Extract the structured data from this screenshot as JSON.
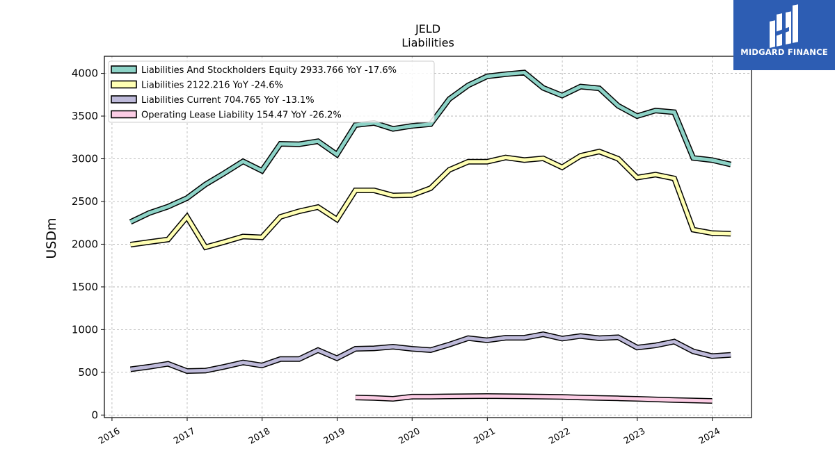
{
  "branding": {
    "logo_text": "MIDGARD FINANCE",
    "logo_icon": "midgard-logo-mark",
    "logo_bg": "#2d5db3"
  },
  "chart_data": {
    "type": "line",
    "title": "JELD",
    "subtitle": "Liabilities",
    "xlabel": "",
    "ylabel": "USDm",
    "xlim": [
      "2015-11-25",
      "2024-07-10"
    ],
    "ylim": [
      -30,
      4200
    ],
    "yticks": [
      0,
      500,
      1000,
      1500,
      2000,
      2500,
      3000,
      3500,
      4000
    ],
    "xticks": [
      "2016",
      "2017",
      "2018",
      "2019",
      "2020",
      "2021",
      "2022",
      "2023",
      "2024"
    ],
    "grid": true,
    "legend_position": "top-left",
    "series": [
      {
        "name": "Liabilities And Stockholders Equity",
        "legend_label": "Liabilities And Stockholders Equity  2933.766 YoY -17.6%",
        "color": "#8dd3c7",
        "points": [
          [
            "2016-03-31",
            2260
          ],
          [
            "2016-06-30",
            2365
          ],
          [
            "2016-09-30",
            2440
          ],
          [
            "2016-12-31",
            2540
          ],
          [
            "2017-03-31",
            2700
          ],
          [
            "2017-06-30",
            2830
          ],
          [
            "2017-09-30",
            2970
          ],
          [
            "2017-12-31",
            2860
          ],
          [
            "2018-03-31",
            3175
          ],
          [
            "2018-06-30",
            3170
          ],
          [
            "2018-09-30",
            3205
          ],
          [
            "2018-12-31",
            3050
          ],
          [
            "2019-03-31",
            3395
          ],
          [
            "2019-06-30",
            3420
          ],
          [
            "2019-09-30",
            3350
          ],
          [
            "2019-12-31",
            3385
          ],
          [
            "2020-03-31",
            3405
          ],
          [
            "2020-06-30",
            3700
          ],
          [
            "2020-09-30",
            3860
          ],
          [
            "2020-12-31",
            3965
          ],
          [
            "2021-03-31",
            3990
          ],
          [
            "2021-06-30",
            4010
          ],
          [
            "2021-09-30",
            3830
          ],
          [
            "2021-12-31",
            3740
          ],
          [
            "2022-03-31",
            3845
          ],
          [
            "2022-06-30",
            3825
          ],
          [
            "2022-09-30",
            3620
          ],
          [
            "2022-12-31",
            3500
          ],
          [
            "2023-03-31",
            3565
          ],
          [
            "2023-06-30",
            3545
          ],
          [
            "2023-09-30",
            3010
          ],
          [
            "2023-12-31",
            2985
          ],
          [
            "2024-03-31",
            2933.766
          ]
        ]
      },
      {
        "name": "Liabilities",
        "legend_label": "Liabilities  2122.216 YoY -24.6%",
        "color": "#ffffb3",
        "points": [
          [
            "2016-03-31",
            1995
          ],
          [
            "2016-06-30",
            2025
          ],
          [
            "2016-09-30",
            2055
          ],
          [
            "2016-12-31",
            2320
          ],
          [
            "2017-03-31",
            1965
          ],
          [
            "2017-06-30",
            2025
          ],
          [
            "2017-09-30",
            2090
          ],
          [
            "2017-12-31",
            2080
          ],
          [
            "2018-03-31",
            2320
          ],
          [
            "2018-06-30",
            2385
          ],
          [
            "2018-09-30",
            2435
          ],
          [
            "2018-12-31",
            2290
          ],
          [
            "2019-03-31",
            2630
          ],
          [
            "2019-06-30",
            2630
          ],
          [
            "2019-09-30",
            2570
          ],
          [
            "2019-12-31",
            2575
          ],
          [
            "2020-03-31",
            2655
          ],
          [
            "2020-06-30",
            2870
          ],
          [
            "2020-09-30",
            2965
          ],
          [
            "2020-12-31",
            2965
          ],
          [
            "2021-03-31",
            3015
          ],
          [
            "2021-06-30",
            2985
          ],
          [
            "2021-09-30",
            3005
          ],
          [
            "2021-12-31",
            2900
          ],
          [
            "2022-03-31",
            3035
          ],
          [
            "2022-06-30",
            3085
          ],
          [
            "2022-09-30",
            3000
          ],
          [
            "2022-12-31",
            2780
          ],
          [
            "2023-03-31",
            2815
          ],
          [
            "2023-06-30",
            2770
          ],
          [
            "2023-09-30",
            2170
          ],
          [
            "2023-12-31",
            2130
          ],
          [
            "2024-03-31",
            2122.216
          ]
        ]
      },
      {
        "name": "Liabilities Current",
        "legend_label": "Liabilities Current  704.765 YoY -13.1%",
        "color": "#bebada",
        "points": [
          [
            "2016-03-31",
            535
          ],
          [
            "2016-06-30",
            565
          ],
          [
            "2016-09-30",
            600
          ],
          [
            "2016-12-31",
            515
          ],
          [
            "2017-03-31",
            520
          ],
          [
            "2017-06-30",
            565
          ],
          [
            "2017-09-30",
            615
          ],
          [
            "2017-12-31",
            580
          ],
          [
            "2018-03-31",
            655
          ],
          [
            "2018-06-30",
            655
          ],
          [
            "2018-09-30",
            760
          ],
          [
            "2018-12-31",
            665
          ],
          [
            "2019-03-31",
            775
          ],
          [
            "2019-06-30",
            780
          ],
          [
            "2019-09-30",
            800
          ],
          [
            "2019-12-31",
            775
          ],
          [
            "2020-03-31",
            760
          ],
          [
            "2020-06-30",
            825
          ],
          [
            "2020-09-30",
            900
          ],
          [
            "2020-12-31",
            875
          ],
          [
            "2021-03-31",
            905
          ],
          [
            "2021-06-30",
            905
          ],
          [
            "2021-09-30",
            945
          ],
          [
            "2021-12-31",
            895
          ],
          [
            "2022-03-31",
            925
          ],
          [
            "2022-06-30",
            900
          ],
          [
            "2022-09-30",
            910
          ],
          [
            "2022-12-31",
            790
          ],
          [
            "2023-03-31",
            815
          ],
          [
            "2023-06-30",
            860
          ],
          [
            "2023-09-30",
            745
          ],
          [
            "2023-12-31",
            690
          ],
          [
            "2024-03-31",
            704.765
          ]
        ]
      },
      {
        "name": "Operating Lease Liability",
        "legend_label": "Operating Lease Liability  154.47 YoY -26.2%",
        "color": "#fccde5",
        "points": [
          [
            "2019-03-31",
            205
          ],
          [
            "2019-06-30",
            200
          ],
          [
            "2019-09-30",
            190
          ],
          [
            "2019-12-31",
            215
          ],
          [
            "2020-03-31",
            215
          ],
          [
            "2020-06-30",
            218
          ],
          [
            "2020-09-30",
            220
          ],
          [
            "2020-12-31",
            222
          ],
          [
            "2021-03-31",
            220
          ],
          [
            "2021-06-30",
            218
          ],
          [
            "2021-09-30",
            215
          ],
          [
            "2021-12-31",
            212
          ],
          [
            "2022-03-31",
            205
          ],
          [
            "2022-06-30",
            200
          ],
          [
            "2022-09-30",
            195
          ],
          [
            "2022-12-31",
            190
          ],
          [
            "2023-03-31",
            182
          ],
          [
            "2023-06-30",
            175
          ],
          [
            "2023-09-30",
            170
          ],
          [
            "2023-12-31",
            165
          ]
        ]
      }
    ]
  }
}
